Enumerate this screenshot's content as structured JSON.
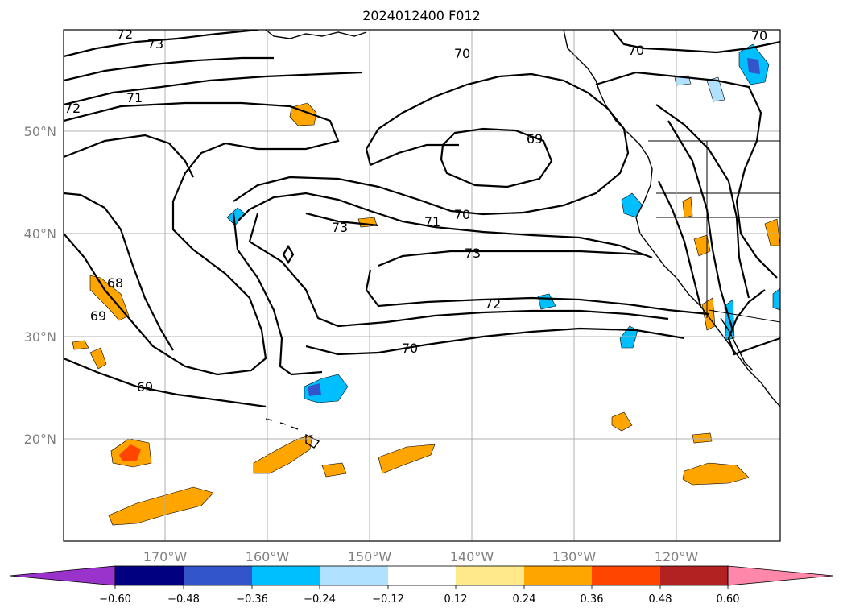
{
  "title": "2024012400 F012",
  "map": {
    "lon_labels": [
      "170°W",
      "160°W",
      "150°W",
      "140°W",
      "130°W",
      "120°W"
    ],
    "lat_labels": [
      "50°N",
      "40°N",
      "30°N",
      "20°N"
    ],
    "contour_labels": [
      "72",
      "73",
      "71",
      "72",
      "70",
      "70",
      "70",
      "69",
      "68",
      "69",
      "73",
      "71",
      "70",
      "73",
      "72",
      "70",
      "69"
    ]
  },
  "colorbar": {
    "colors": [
      "#9933cc",
      "#000080",
      "#3355cc",
      "#00bfff",
      "#b0e2ff",
      "#ffffff",
      "#ffe98a",
      "#ffa500",
      "#ff4500",
      "#b22222",
      "#ff88aa"
    ],
    "tick_labels": [
      "−0.60",
      "−0.48",
      "−0.36",
      "−0.24",
      "−0.12",
      "0.12",
      "0.24",
      "0.36",
      "0.48",
      "0.60"
    ]
  }
}
